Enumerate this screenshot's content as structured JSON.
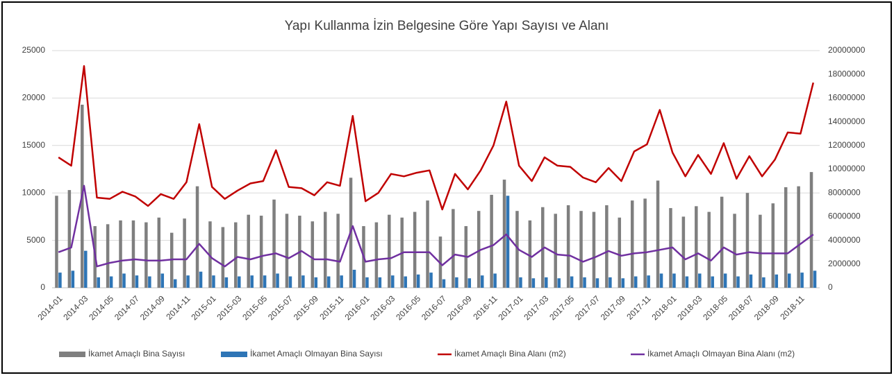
{
  "chart_data": {
    "type": "combo",
    "title": "Yapı Kullanma İzin Belgesine Göre Yapı Sayısı ve Alanı",
    "categories": [
      "2014-01",
      null,
      "2014-03",
      null,
      "2014-05",
      null,
      "2014-07",
      null,
      "2014-09",
      null,
      "2014-11",
      null,
      "2015-01",
      null,
      "2015-03",
      null,
      "2015-05",
      null,
      "2015-07",
      null,
      "2015-09",
      null,
      "2015-11",
      null,
      "2016-01",
      null,
      "2016-03",
      null,
      "2016-05",
      null,
      "2016-07",
      null,
      "2016-09",
      null,
      "2016-11",
      null,
      "2017-01",
      null,
      "2017-03",
      null,
      "2017-05",
      null,
      "2017-07",
      null,
      "2017-09",
      null,
      "2017-11",
      null,
      "2018-01",
      null,
      "2018-03",
      null,
      "2018-05",
      null,
      "2018-07",
      null,
      "2018-09",
      null,
      "2018-11",
      null
    ],
    "series": [
      {
        "name": "İkamet Amaçlı Bina Sayısı",
        "type": "bar",
        "color": "#7f7f7f",
        "values": [
          9700,
          10300,
          19300,
          6500,
          6700,
          7100,
          7100,
          6900,
          7400,
          5800,
          7300,
          10700,
          7000,
          6400,
          6900,
          7700,
          7600,
          9300,
          7800,
          7600,
          7000,
          8000,
          7800,
          11600,
          6500,
          6900,
          7700,
          7400,
          8000,
          9200,
          5400,
          8300,
          6500,
          8100,
          9800,
          11400,
          8100,
          7100,
          8500,
          7800,
          8700,
          8100,
          8000,
          8700,
          7400,
          9200,
          9400,
          11300,
          8400,
          7500,
          8600,
          8000,
          9600,
          7800,
          10000,
          7700,
          8900,
          10600,
          10700,
          12200
        ]
      },
      {
        "name": "İkamet Amaçlı Olmayan Bina Sayısı",
        "type": "bar",
        "color": "#2e75b6",
        "values": [
          1600,
          1800,
          3900,
          1100,
          1200,
          1500,
          1300,
          1200,
          1500,
          900,
          1300,
          1700,
          1300,
          1100,
          1200,
          1300,
          1300,
          1500,
          1200,
          1300,
          1100,
          1200,
          1300,
          1900,
          1100,
          1100,
          1300,
          1200,
          1400,
          1600,
          900,
          1100,
          1000,
          1300,
          1500,
          9700,
          1100,
          1000,
          1100,
          1000,
          1200,
          1100,
          1000,
          1100,
          1000,
          1200,
          1300,
          1500,
          1500,
          1200,
          1500,
          1200,
          1500,
          1200,
          1400,
          1100,
          1400,
          1500,
          1600,
          1800
        ]
      },
      {
        "name": "İkamet Amaçlı Bina Alanı (m2)",
        "type": "line",
        "axis": "y2",
        "color": "#c00000",
        "values": [
          11000000,
          10300000,
          18700000,
          7600000,
          7500000,
          8100000,
          7700000,
          6900000,
          7900000,
          7500000,
          8900000,
          13800000,
          8500000,
          7500000,
          8200000,
          8800000,
          9000000,
          11600000,
          8500000,
          8400000,
          7800000,
          8900000,
          8600000,
          14500000,
          7300000,
          8000000,
          9600000,
          9400000,
          9700000,
          9900000,
          6600000,
          9600000,
          8300000,
          9900000,
          12000000,
          15700000,
          10300000,
          9000000,
          11000000,
          10300000,
          10200000,
          9300000,
          8900000,
          10100000,
          9000000,
          11500000,
          12100000,
          15000000,
          11400000,
          9400000,
          11200000,
          9600000,
          12200000,
          9200000,
          11100000,
          9400000,
          10800000,
          13100000,
          13000000,
          17300000
        ]
      },
      {
        "name": "İkamet Amaçlı Olmayan Bina Alanı (m2)",
        "type": "line",
        "axis": "y2",
        "color": "#7030a0",
        "values": [
          3000000,
          3400000,
          8600000,
          1800000,
          2100000,
          2300000,
          2400000,
          2300000,
          2300000,
          2400000,
          2400000,
          3700000,
          2500000,
          1800000,
          2600000,
          2400000,
          2700000,
          2900000,
          2500000,
          3100000,
          2400000,
          2400000,
          2200000,
          5200000,
          2200000,
          2400000,
          2500000,
          3000000,
          3000000,
          3000000,
          1900000,
          2800000,
          2600000,
          3200000,
          3600000,
          4500000,
          3200000,
          2600000,
          3400000,
          2800000,
          2700000,
          2200000,
          2600000,
          3100000,
          2700000,
          2900000,
          3000000,
          3200000,
          3400000,
          2400000,
          2900000,
          2300000,
          3400000,
          2800000,
          3000000,
          2900000,
          2900000,
          2900000,
          3700000,
          4500000
        ]
      }
    ],
    "ylim": [
      0,
      25000
    ],
    "yticks": [
      0,
      5000,
      10000,
      15000,
      20000,
      25000
    ],
    "y2lim": [
      0,
      20000000
    ],
    "y2ticks": [
      0,
      2000000,
      4000000,
      6000000,
      8000000,
      10000000,
      12000000,
      14000000,
      16000000,
      18000000,
      20000000
    ],
    "grid": true,
    "legend": "bottom"
  }
}
